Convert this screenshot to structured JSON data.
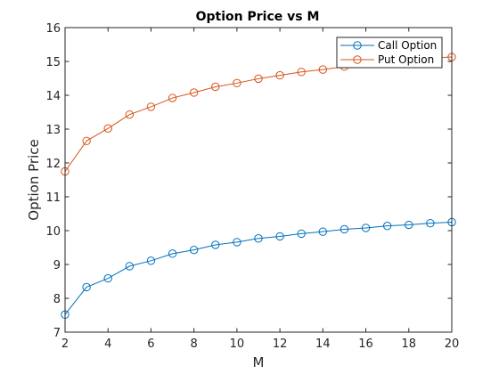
{
  "chart_data": {
    "type": "line",
    "title": "Option Price vs M",
    "xlabel": "M",
    "ylabel": "Option Price",
    "xlim": [
      2,
      20
    ],
    "ylim": [
      7,
      16
    ],
    "xticks": [
      2,
      4,
      6,
      8,
      10,
      12,
      14,
      16,
      18,
      20
    ],
    "yticks": [
      7,
      8,
      9,
      10,
      11,
      12,
      13,
      14,
      15,
      16
    ],
    "grid": false,
    "legend_position": "top-right",
    "x": [
      2,
      3,
      4,
      5,
      6,
      7,
      8,
      9,
      10,
      11,
      12,
      13,
      14,
      15,
      16,
      17,
      18,
      19,
      20
    ],
    "series": [
      {
        "name": "Call Option",
        "color": "#0072BD",
        "marker": "circle",
        "values": [
          7.52,
          8.33,
          8.59,
          8.95,
          9.11,
          9.32,
          9.43,
          9.58,
          9.66,
          9.77,
          9.83,
          9.91,
          9.97,
          10.04,
          10.08,
          10.14,
          10.17,
          10.22,
          10.25
        ]
      },
      {
        "name": "Put Option",
        "color": "#D95319",
        "marker": "circle",
        "values": [
          11.75,
          12.65,
          13.02,
          13.43,
          13.66,
          13.92,
          14.08,
          14.25,
          14.36,
          14.49,
          14.59,
          14.69,
          14.76,
          14.85,
          14.93,
          15.01,
          15.05,
          15.1,
          15.13
        ]
      }
    ]
  }
}
